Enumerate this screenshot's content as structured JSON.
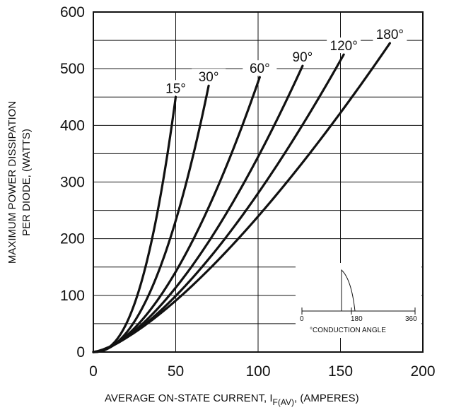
{
  "chart_data": {
    "type": "line",
    "xlabel_main": "AVERAGE ON-STATE CURRENT, I",
    "xlabel_sub": "F(AV)",
    "xlabel_tail": ", (AMPERES)",
    "ylabel_line1": "MAXIMUM POWER DISSIPATION",
    "ylabel_line2": "PER DIODE,  (WATTS)",
    "xlim": [
      0,
      200
    ],
    "ylim": [
      0,
      600
    ],
    "x_ticks": [
      "0",
      "50",
      "100",
      "150",
      "200"
    ],
    "y_ticks": [
      "0",
      "100",
      "200",
      "300",
      "400",
      "500",
      "600"
    ],
    "grid": true,
    "series": [
      {
        "name": "15°",
        "x_end": 50,
        "y_end": 450,
        "exponent": 2.4
      },
      {
        "name": "30°",
        "x_end": 70,
        "y_end": 470,
        "exponent": 2.1
      },
      {
        "name": "60°",
        "x_end": 101,
        "y_end": 485,
        "exponent": 1.75
      },
      {
        "name": "90°",
        "x_end": 127,
        "y_end": 505,
        "exponent": 1.6
      },
      {
        "name": "120°",
        "x_end": 152,
        "y_end": 525,
        "exponent": 1.5
      },
      {
        "name": "180°",
        "x_end": 180,
        "y_end": 545,
        "exponent": 1.4
      }
    ]
  },
  "inset": {
    "title": "°CONDUCTION ANGLE",
    "tick_labels": [
      "0",
      "180",
      "360"
    ]
  }
}
